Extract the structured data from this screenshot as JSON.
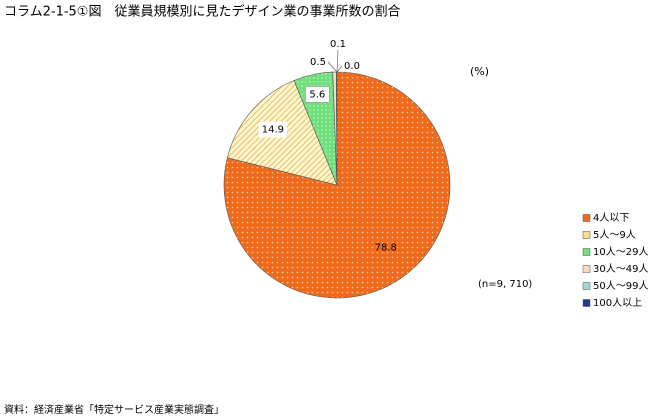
{
  "chart_data": {
    "type": "pie",
    "title": "コラム2-1-5①図　従業員規模別に見たデザイン業の事業所数の割合",
    "unit": "(%)",
    "note": "(n=9, 710)",
    "source": "資料：経済産業省「特定サービス産業実態調査」",
    "categories": [
      "4人以下",
      "5人～9人",
      "10人～29人",
      "30人～49人",
      "50人～99人",
      "100人以上"
    ],
    "values": [
      78.8,
      14.9,
      5.6,
      0.5,
      0.1,
      0.0
    ],
    "value_labels": [
      "78.8",
      "14.9",
      "5.6",
      "0.5",
      "0.1",
      "0.0"
    ],
    "colors": [
      "#f06a1c",
      "#f7dc8c",
      "#6ee07c",
      "#f9d8c4",
      "#9fdcd8",
      "#1f3a8a"
    ]
  }
}
